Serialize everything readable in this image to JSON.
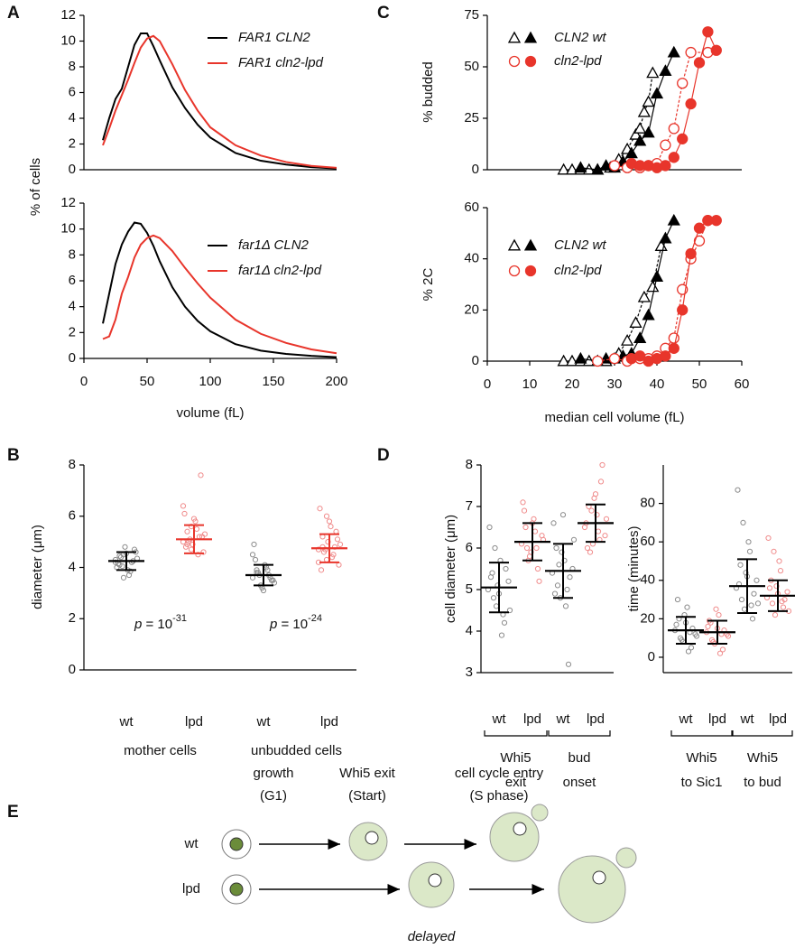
{
  "chart_data": [
    {
      "type": "line",
      "panel": "A",
      "ylabel": "% of cells",
      "xlim": [
        0,
        200
      ],
      "ylim": [
        0,
        12
      ],
      "yticks": [
        0,
        2,
        4,
        6,
        8,
        10,
        12
      ],
      "x": [
        15,
        20,
        25,
        30,
        35,
        40,
        45,
        50,
        55,
        60,
        70,
        80,
        90,
        100,
        120,
        140,
        160,
        180,
        200
      ],
      "series": [
        {
          "name": "FAR1 CLN2",
          "color": "#000000",
          "values": [
            2.3,
            4.0,
            5.5,
            6.3,
            8.0,
            9.7,
            10.6,
            10.6,
            9.6,
            8.5,
            6.4,
            4.8,
            3.5,
            2.5,
            1.3,
            0.7,
            0.4,
            0.2,
            0.1
          ]
        },
        {
          "name": "FAR1 cln2-lpd",
          "color": "#e8352b",
          "values": [
            1.9,
            3.2,
            4.6,
            5.8,
            7.0,
            8.3,
            9.5,
            10.2,
            10.4,
            10.0,
            8.2,
            6.2,
            4.6,
            3.3,
            1.9,
            1.1,
            0.6,
            0.3,
            0.15
          ]
        }
      ]
    },
    {
      "type": "line",
      "xlabel": "volume (fL)",
      "xlim": [
        0,
        200
      ],
      "xticks": [
        0,
        50,
        100,
        150,
        200
      ],
      "ylim": [
        0,
        12
      ],
      "yticks": [
        0,
        2,
        4,
        6,
        8,
        10,
        12
      ],
      "x": [
        15,
        20,
        25,
        30,
        35,
        40,
        45,
        50,
        55,
        60,
        70,
        80,
        90,
        100,
        120,
        140,
        160,
        180,
        200
      ],
      "series": [
        {
          "name": "far1Δ CLN2",
          "color": "#000000",
          "values": [
            2.7,
            5.0,
            7.3,
            8.8,
            9.8,
            10.5,
            10.4,
            9.7,
            8.7,
            7.5,
            5.5,
            4.0,
            2.9,
            2.1,
            1.1,
            0.6,
            0.35,
            0.2,
            0.1
          ]
        },
        {
          "name": "far1Δ cln2-lpd",
          "color": "#e8352b",
          "values": [
            1.5,
            1.7,
            3.0,
            5.0,
            6.3,
            7.8,
            8.8,
            9.3,
            9.5,
            9.3,
            8.3,
            7.0,
            5.8,
            4.7,
            3.0,
            1.9,
            1.2,
            0.7,
            0.4
          ]
        }
      ]
    },
    {
      "type": "scatter-line",
      "panel": "C",
      "ylabel": "% budded",
      "xlim": [
        0,
        60
      ],
      "ylim": [
        0,
        75
      ],
      "yticks": [
        0,
        25,
        50,
        75
      ],
      "series": [
        {
          "name": "CLN2 wt",
          "color": "#000000",
          "marker": "triangle",
          "open": {
            "x": [
              18,
              20,
              22,
              24,
              26,
              29,
              31,
              33,
              35,
              36,
              37,
              38,
              39
            ],
            "values": [
              0,
              0,
              0,
              0,
              0,
              1,
              5,
              10,
              17,
              20,
              28,
              33,
              47
            ]
          },
          "filled": {
            "x": [
              22,
              26,
              28,
              30,
              32,
              34,
              36,
              38,
              40,
              42,
              44
            ],
            "values": [
              1,
              0,
              2,
              1,
              4,
              8,
              14,
              18,
              37,
              48,
              57
            ]
          }
        },
        {
          "name": "cln2-lpd",
          "color": "#e8352b",
          "marker": "circle",
          "open": {
            "x": [
              30,
              33,
              36,
              38,
              40,
              42,
              44,
              46,
              48,
              52
            ],
            "values": [
              2,
              1,
              1,
              2,
              3,
              12,
              20,
              42,
              57,
              57
            ]
          },
          "filled": {
            "x": [
              34,
              36,
              38,
              40,
              42,
              44,
              46,
              48,
              50,
              52,
              54
            ],
            "values": [
              3,
              2,
              2,
              1,
              2,
              6,
              15,
              32,
              52,
              67,
              58
            ]
          }
        }
      ]
    },
    {
      "type": "scatter-line",
      "ylabel": "% 2C",
      "xlabel": "median cell volume (fL)",
      "xlim": [
        0,
        60
      ],
      "xticks": [
        0,
        10,
        20,
        30,
        40,
        50,
        60
      ],
      "ylim": [
        0,
        60
      ],
      "yticks": [
        0,
        20,
        40,
        60
      ],
      "series": [
        {
          "name": "CLN2 wt",
          "color": "#000000",
          "marker": "triangle",
          "open": {
            "x": [
              18,
              20,
              22,
              24,
              26,
              28,
              31,
              33,
              35,
              37,
              39,
              41
            ],
            "values": [
              0,
              0,
              0,
              0,
              0,
              0,
              3,
              8,
              15,
              25,
              29,
              45
            ]
          },
          "filled": {
            "x": [
              22,
              26,
              28,
              30,
              32,
              34,
              36,
              38,
              40,
              42,
              44
            ],
            "values": [
              1,
              0,
              1,
              1,
              2,
              3,
              9,
              18,
              33,
              48,
              55
            ]
          }
        },
        {
          "name": "cln2-lpd",
          "color": "#e8352b",
          "marker": "circle",
          "open": {
            "x": [
              26,
              30,
              33,
              36,
              38,
              40,
              42,
              44,
              46,
              48,
              50,
              52
            ],
            "values": [
              0,
              1,
              0,
              1,
              1,
              2,
              5,
              9,
              28,
              40,
              47,
              55
            ]
          },
          "filled": {
            "x": [
              34,
              36,
              38,
              40,
              42,
              44,
              46,
              48,
              50,
              52,
              54
            ],
            "values": [
              1,
              2,
              0,
              1,
              2,
              5,
              20,
              42,
              52,
              55,
              55
            ]
          }
        }
      ]
    },
    {
      "type": "strip",
      "panel": "B",
      "ylabel": "diameter (μm)",
      "ylim": [
        0,
        8
      ],
      "yticks": [
        0,
        2,
        4,
        6,
        8
      ],
      "categories": [
        "wt",
        "lpd",
        "wt",
        "lpd"
      ],
      "group_labels": [
        [
          "mother cells"
        ],
        [
          "unbudded cells"
        ]
      ],
      "point_colors": [
        "#8c8c8c",
        "#f08c8c",
        "#8c8c8c",
        "#f08c8c"
      ],
      "bar_colors": [
        "#000000",
        "#e8352b",
        "#000000",
        "#e8352b"
      ],
      "points": [
        [
          4.3,
          4.1,
          4.5,
          3.9,
          4.2,
          4.6,
          4.0,
          4.4,
          4.8,
          3.7,
          4.25,
          4.35,
          4.15,
          4.05,
          4.55,
          3.85,
          4.7,
          4.2,
          4.45,
          3.6
        ],
        [
          5.0,
          5.4,
          4.7,
          5.8,
          5.2,
          4.6,
          6.1,
          5.0,
          4.9,
          5.5,
          7.6,
          5.3,
          4.8,
          5.1,
          5.9,
          4.5,
          5.2,
          6.4,
          4.9,
          5.6
        ],
        [
          3.6,
          3.9,
          3.3,
          4.1,
          3.7,
          3.5,
          4.9,
          3.8,
          3.2,
          4.0,
          3.6,
          3.4,
          4.3,
          3.7,
          3.1,
          3.9,
          3.5,
          4.5,
          3.8,
          3.3
        ],
        [
          4.7,
          5.2,
          4.3,
          5.6,
          4.8,
          4.1,
          6.3,
          4.6,
          5.0,
          4.4,
          5.4,
          4.9,
          3.9,
          4.7,
          5.8,
          4.5,
          5.1,
          4.2,
          4.8,
          6.0
        ]
      ],
      "mean": [
        4.25,
        5.1,
        3.7,
        4.75
      ],
      "sd": [
        0.35,
        0.55,
        0.4,
        0.55
      ],
      "annotations": [
        {
          "italic": "p",
          "text": " = 10",
          "superscript": "-31"
        },
        {
          "italic": "p",
          "text": " = 10",
          "superscript": "-24"
        }
      ]
    },
    {
      "type": "strip",
      "panel": "D",
      "ylabel": "cell diameter (μm)",
      "ylim": [
        3,
        8
      ],
      "yticks": [
        3,
        4,
        5,
        6,
        7,
        8
      ],
      "categories": [
        "wt",
        "lpd",
        "wt",
        "lpd"
      ],
      "group_labels": [
        [
          "Whi5",
          "exit"
        ],
        [
          "bud",
          "onset"
        ]
      ],
      "point_colors": [
        "#8c8c8c",
        "#f08c8c",
        "#8c8c8c",
        "#f08c8c"
      ],
      "bar_colors": [
        "#000000",
        "#000000",
        "#000000",
        "#000000"
      ],
      "points": [
        [
          5.0,
          5.4,
          4.6,
          5.7,
          4.2,
          5.2,
          6.5,
          4.8,
          5.1,
          3.9,
          5.5,
          4.5,
          5.3,
          6.0,
          4.9,
          4.4
        ],
        [
          6.1,
          6.5,
          5.8,
          6.7,
          5.5,
          6.3,
          7.1,
          6.0,
          5.9,
          6.4,
          5.2,
          6.2,
          6.9,
          5.7,
          6.6,
          6.0
        ],
        [
          5.4,
          6.0,
          4.8,
          5.7,
          3.2,
          5.5,
          6.6,
          5.1,
          5.9,
          4.6,
          5.3,
          6.2,
          4.9,
          5.6,
          6.8,
          5.0
        ],
        [
          6.5,
          7.0,
          6.1,
          6.8,
          7.6,
          6.3,
          6.6,
          5.9,
          7.2,
          6.4,
          8.0,
          6.7,
          6.0,
          6.9,
          7.3,
          6.2
        ]
      ],
      "mean": [
        5.05,
        6.15,
        5.45,
        6.6
      ],
      "sd": [
        0.6,
        0.45,
        0.65,
        0.45
      ]
    },
    {
      "type": "strip",
      "ylabel": "time (minutes)",
      "ylim": [
        -8,
        100
      ],
      "yticks": [
        0,
        20,
        40,
        60,
        80
      ],
      "categories": [
        "wt",
        "lpd",
        "wt",
        "lpd"
      ],
      "group_labels": [
        [
          "Whi5",
          "to Sic1"
        ],
        [
          "Whi5",
          "to bud"
        ]
      ],
      "point_colors": [
        "#8c8c8c",
        "#f08c8c",
        "#8c8c8c",
        "#f08c8c"
      ],
      "bar_colors": [
        "#000000",
        "#000000",
        "#000000",
        "#000000"
      ],
      "points": [
        [
          14,
          20,
          8,
          26,
          5,
          12,
          17,
          10,
          22,
          3,
          15,
          11,
          30,
          9,
          18,
          13
        ],
        [
          13,
          18,
          7,
          22,
          4,
          12,
          16,
          9,
          25,
          2,
          14,
          11,
          19,
          8,
          15,
          12
        ],
        [
          36,
          48,
          25,
          60,
          20,
          40,
          87,
          30,
          44,
          55,
          33,
          28,
          38,
          70,
          42,
          27
        ],
        [
          31,
          40,
          22,
          50,
          26,
          34,
          62,
          28,
          37,
          45,
          30,
          24,
          36,
          55,
          33,
          29
        ]
      ],
      "mean": [
        14,
        13,
        37,
        32
      ],
      "sd": [
        7,
        6,
        14,
        8
      ]
    }
  ],
  "diagram": {
    "panel": "E",
    "columns": [
      [
        "growth",
        "(G1)"
      ],
      [
        "Whi5 exit",
        "(Start)"
      ],
      [
        "cell cycle entry",
        "(S phase)"
      ]
    ],
    "rows": [
      "wt",
      "lpd"
    ],
    "note": "delayed"
  }
}
